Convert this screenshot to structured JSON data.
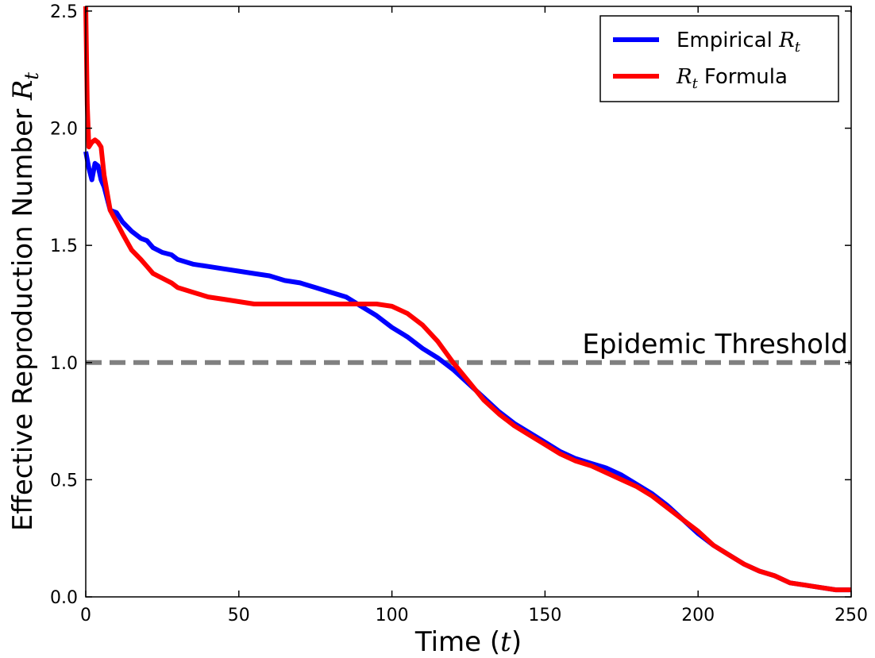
{
  "chart_data": {
    "type": "line",
    "xlabel_text": "Time (",
    "xlabel_var": "t",
    "xlabel_close": ")",
    "ylabel_text": "Effective Reproduction Number",
    "ylabel_var": "R",
    "ylabel_sub": "t",
    "xlim": [
      0,
      250
    ],
    "ylim": [
      0,
      2.52
    ],
    "xticks": [
      "0",
      "50",
      "100",
      "150",
      "200",
      "250"
    ],
    "xtick_values": [
      0,
      50,
      100,
      150,
      200,
      250
    ],
    "yticks": [
      "0.0",
      "0.5",
      "1.0",
      "1.5",
      "2.0",
      "2.5"
    ],
    "ytick_values": [
      0,
      0.5,
      1.0,
      1.5,
      2.0,
      2.5
    ],
    "legend_position": "top-right",
    "threshold": {
      "y": 1.0,
      "label": "Epidemic Threshold",
      "color": "#808080",
      "style": "dashed"
    },
    "series": [
      {
        "name_text": "Empirical",
        "name_var": "R",
        "name_sub": "t",
        "color": "#0000ff",
        "x": [
          0,
          1,
          2,
          3,
          4,
          5,
          6,
          8,
          10,
          12,
          15,
          18,
          20,
          22,
          25,
          28,
          30,
          35,
          40,
          45,
          50,
          55,
          60,
          65,
          70,
          75,
          80,
          85,
          90,
          95,
          100,
          105,
          110,
          115,
          120,
          125,
          130,
          135,
          140,
          145,
          150,
          155,
          160,
          165,
          170,
          175,
          180,
          185,
          190,
          195,
          200,
          205,
          210,
          215,
          220,
          225,
          230,
          235,
          240,
          245,
          250
        ],
        "y": [
          1.9,
          1.83,
          1.78,
          1.85,
          1.84,
          1.78,
          1.75,
          1.65,
          1.64,
          1.6,
          1.56,
          1.53,
          1.52,
          1.49,
          1.47,
          1.46,
          1.44,
          1.42,
          1.41,
          1.4,
          1.39,
          1.38,
          1.37,
          1.35,
          1.34,
          1.32,
          1.3,
          1.28,
          1.24,
          1.2,
          1.15,
          1.11,
          1.06,
          1.02,
          0.97,
          0.91,
          0.85,
          0.79,
          0.74,
          0.7,
          0.66,
          0.62,
          0.59,
          0.57,
          0.55,
          0.52,
          0.48,
          0.44,
          0.39,
          0.33,
          0.27,
          0.22,
          0.18,
          0.14,
          0.11,
          0.09,
          0.06,
          0.05,
          0.04,
          0.03,
          0.03
        ]
      },
      {
        "name_text": "Formula",
        "name_var": "R",
        "name_sub": "t",
        "color": "#ff0000",
        "x": [
          0,
          0.5,
          1,
          2,
          3,
          4,
          5,
          6,
          8,
          10,
          12,
          15,
          18,
          20,
          22,
          25,
          28,
          30,
          35,
          40,
          45,
          50,
          55,
          60,
          65,
          70,
          75,
          80,
          85,
          90,
          95,
          100,
          105,
          110,
          115,
          120,
          125,
          130,
          135,
          140,
          145,
          150,
          155,
          160,
          165,
          170,
          175,
          180,
          185,
          190,
          195,
          200,
          205,
          210,
          215,
          220,
          225,
          230,
          235,
          240,
          245,
          250
        ],
        "y": [
          2.52,
          2.1,
          1.92,
          1.94,
          1.95,
          1.94,
          1.92,
          1.8,
          1.65,
          1.6,
          1.55,
          1.48,
          1.44,
          1.41,
          1.38,
          1.36,
          1.34,
          1.32,
          1.3,
          1.28,
          1.27,
          1.26,
          1.25,
          1.25,
          1.25,
          1.25,
          1.25,
          1.25,
          1.25,
          1.25,
          1.25,
          1.24,
          1.21,
          1.16,
          1.09,
          1.0,
          0.92,
          0.84,
          0.78,
          0.73,
          0.69,
          0.65,
          0.61,
          0.58,
          0.56,
          0.53,
          0.5,
          0.47,
          0.43,
          0.38,
          0.33,
          0.28,
          0.22,
          0.18,
          0.14,
          0.11,
          0.09,
          0.06,
          0.05,
          0.04,
          0.03,
          0.03
        ]
      }
    ]
  }
}
